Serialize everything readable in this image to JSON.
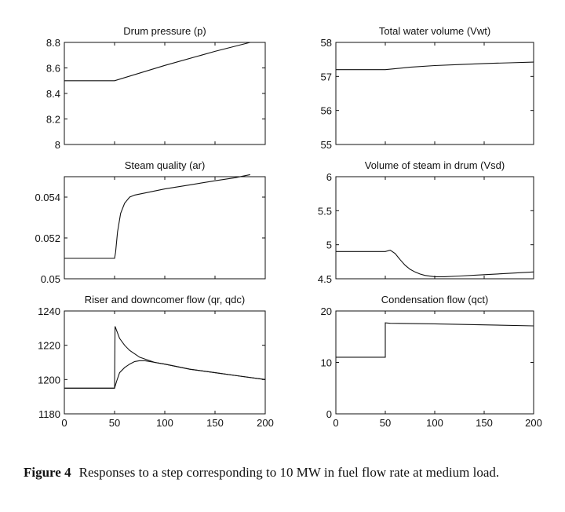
{
  "chart_data": [
    {
      "type": "line",
      "title": "Drum pressure (p)",
      "xlim": [
        0,
        200
      ],
      "ylim": [
        8,
        8.8
      ],
      "xticks": [],
      "yticks": [
        "8",
        "8.2",
        "8.4",
        "8.6",
        "8.8"
      ],
      "series": [
        {
          "x": [
            0,
            50,
            100,
            150,
            185
          ],
          "y": [
            8.5,
            8.5,
            8.62,
            8.73,
            8.8
          ]
        }
      ]
    },
    {
      "type": "line",
      "title": "Total water volume (Vwt)",
      "xlim": [
        0,
        200
      ],
      "ylim": [
        55,
        58
      ],
      "xticks": [],
      "yticks": [
        "55",
        "56",
        "57",
        "58"
      ],
      "series": [
        {
          "x": [
            0,
            50,
            75,
            100,
            125,
            150,
            175,
            200
          ],
          "y": [
            57.2,
            57.2,
            57.27,
            57.32,
            57.35,
            57.38,
            57.4,
            57.42
          ]
        }
      ]
    },
    {
      "type": "line",
      "title": "Steam quality (ar)",
      "xlim": [
        0,
        200
      ],
      "ylim": [
        0.05,
        0.055
      ],
      "xticks": [],
      "yticks": [
        "0.05",
        "0.052",
        "0.054"
      ],
      "series": [
        {
          "x": [
            0,
            50,
            51,
            53,
            56,
            60,
            65,
            70,
            80,
            100,
            125,
            150,
            170,
            180,
            185
          ],
          "y": [
            0.051,
            0.051,
            0.0513,
            0.0523,
            0.0532,
            0.0537,
            0.054,
            0.0541,
            0.0542,
            0.0544,
            0.0546,
            0.0548,
            0.05495,
            0.05505,
            0.0551
          ]
        }
      ]
    },
    {
      "type": "line",
      "title": "Volume of steam in drum (Vsd)",
      "xlim": [
        0,
        200
      ],
      "ylim": [
        4.5,
        6
      ],
      "xticks": [],
      "yticks": [
        "4.5",
        "5",
        "5.5",
        "6"
      ],
      "series": [
        {
          "x": [
            0,
            50,
            55,
            60,
            65,
            70,
            75,
            80,
            85,
            90,
            100,
            110,
            125,
            150,
            175,
            200
          ],
          "y": [
            4.9,
            4.9,
            4.92,
            4.87,
            4.78,
            4.7,
            4.64,
            4.6,
            4.57,
            4.55,
            4.53,
            4.53,
            4.54,
            4.56,
            4.58,
            4.6
          ]
        }
      ]
    },
    {
      "type": "line",
      "title": "Riser and downcomer flow (qr, qdc)",
      "xlim": [
        0,
        200
      ],
      "ylim": [
        1180,
        1240
      ],
      "xticks": [
        "0",
        "50",
        "100",
        "150",
        "200"
      ],
      "yticks": [
        "1180",
        "1200",
        "1220",
        "1240"
      ],
      "series": [
        {
          "x": [
            0,
            50,
            50.5,
            55,
            60,
            65,
            70,
            75,
            80,
            90,
            100,
            125,
            150,
            175,
            200
          ],
          "y": [
            1195,
            1195,
            1231,
            1224,
            1220,
            1217,
            1215,
            1213,
            1212,
            1210,
            1209,
            1206,
            1204,
            1202,
            1200
          ]
        },
        {
          "x": [
            0,
            50,
            52,
            55,
            60,
            65,
            70,
            75,
            80,
            90,
            100,
            125,
            150,
            175,
            200
          ],
          "y": [
            1195,
            1195,
            1199,
            1204,
            1207,
            1209,
            1210.5,
            1211,
            1211,
            1210,
            1209,
            1206,
            1204,
            1202,
            1200
          ]
        }
      ]
    },
    {
      "type": "line",
      "title": "Condensation flow (qct)",
      "xlim": [
        0,
        200
      ],
      "ylim": [
        0,
        20
      ],
      "xticks": [
        "0",
        "50",
        "100",
        "150",
        "200"
      ],
      "yticks": [
        "0",
        "10",
        "20"
      ],
      "series": [
        {
          "x": [
            0,
            50,
            50.01,
            55,
            100,
            150,
            200
          ],
          "y": [
            11,
            11,
            17.7,
            17.6,
            17.5,
            17.3,
            17.1
          ]
        }
      ]
    }
  ],
  "caption": {
    "label": "Figure 4",
    "text": "Responses to a step corresponding to 10 MW in fuel flow rate at medium load."
  }
}
